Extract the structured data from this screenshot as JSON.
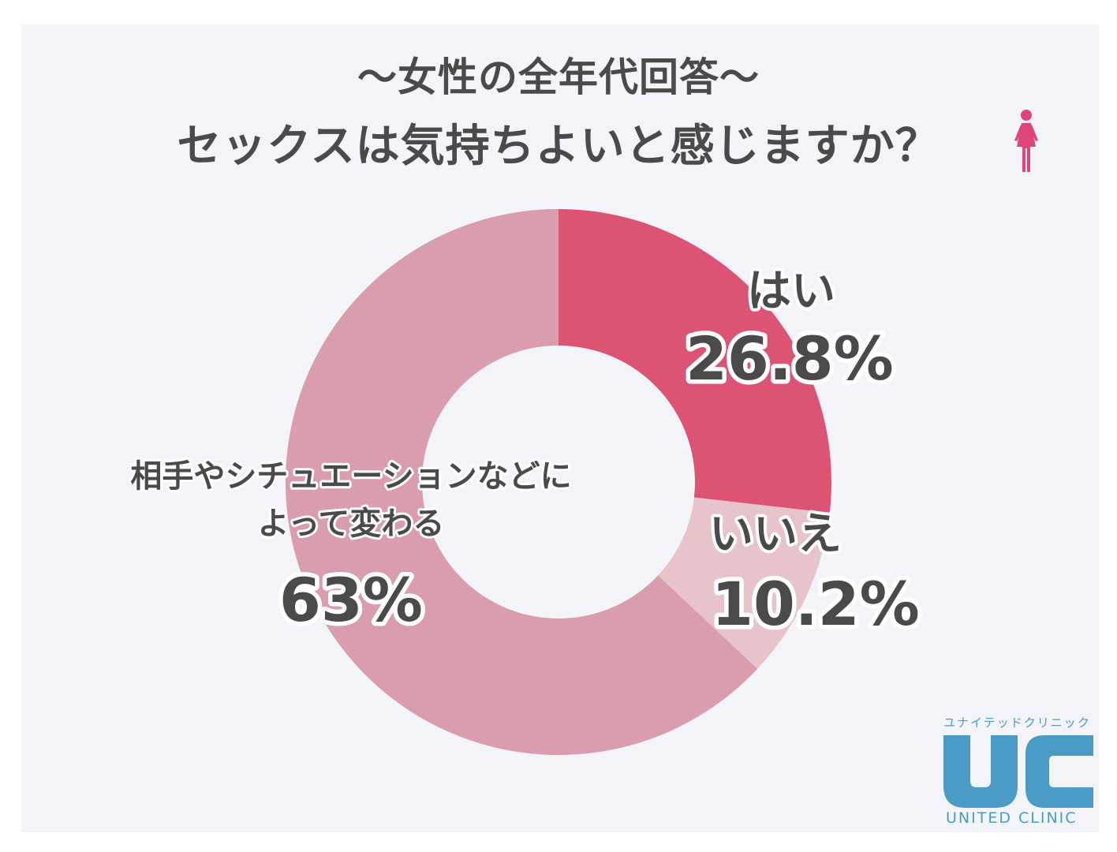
{
  "header": {
    "line1": "〜女性の全年代回答〜",
    "line2": "セックスは気持ちよいと感じますか？",
    "icon": "woman-icon"
  },
  "chart_data": {
    "type": "pie",
    "donut": true,
    "slices": [
      {
        "label": "はい",
        "value": 26.8,
        "display": "26.8%",
        "color": "#dc5373"
      },
      {
        "label": "いいえ",
        "value": 10.2,
        "display": "10.2%",
        "color": "#e7c3ca"
      },
      {
        "label": "相手やシチュエーションなどに\nよって変わる",
        "label_lines": [
          "相手やシチュエーションなどに",
          "よって変わる"
        ],
        "value": 63,
        "display": "63%",
        "color": "#da9dad"
      }
    ]
  },
  "logo": {
    "kana": "ユナイテッドクリニック",
    "mark": "UC",
    "english": "UNITED CLINIC",
    "color": "#4a9cc7"
  },
  "colors": {
    "background": "#f3f4fa",
    "text": "#4a4a4a",
    "woman_icon": "#e0457a"
  }
}
